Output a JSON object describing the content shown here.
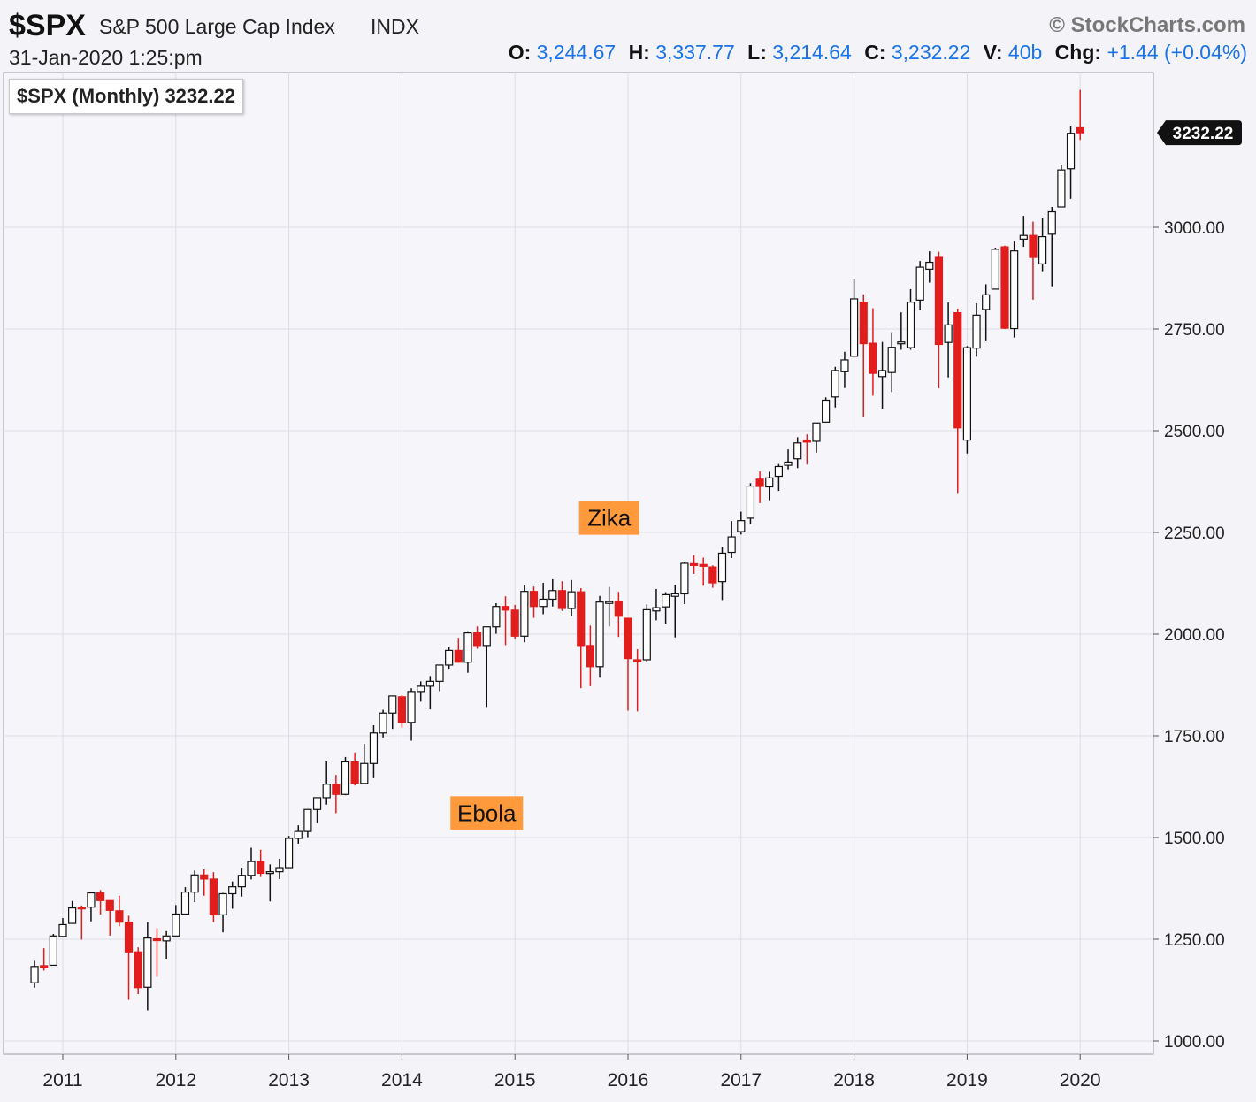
{
  "header": {
    "symbol": "$SPX",
    "name": "S&P 500 Large Cap Index",
    "exchange": "INDX",
    "copyright": "© StockCharts.com",
    "date": "31-Jan-2020 1:25:pm",
    "ohlc": {
      "o_label": "O:",
      "o": "3,244.67",
      "h_label": "H:",
      "h": "3,337.77",
      "l_label": "L:",
      "l": "3,214.64",
      "c_label": "C:",
      "c": "3,232.22",
      "v_label": "V:",
      "v": "40b",
      "chg_label": "Chg:",
      "chg": "+1.44 (+0.04%)"
    }
  },
  "chart_title": "$SPX (Monthly) 3232.22",
  "colors": {
    "up_fill": "#ffffff",
    "down_fill": "#e11d1d",
    "wick": "#111111",
    "grid": "#dcdce4",
    "plot_bg": "#f6f6fa",
    "annotation_bg": "#ff9a3c"
  },
  "chart_data": {
    "type": "candlestick",
    "interval": "monthly",
    "ylim": [
      975,
      3400
    ],
    "yticks": [
      "1000.00",
      "1250.00",
      "1500.00",
      "1750.00",
      "2000.00",
      "2250.00",
      "2500.00",
      "2750.00",
      "3000.00"
    ],
    "ytick_values": [
      1000,
      1250,
      1500,
      1750,
      2000,
      2250,
      2500,
      2750,
      3000
    ],
    "xticks": [
      "2011",
      "2012",
      "2013",
      "2014",
      "2015",
      "2016",
      "2017",
      "2018",
      "2019",
      "2020"
    ],
    "last_price_label": "3232.22",
    "annotations": [
      {
        "text": "Zika",
        "date": "2015-11"
      },
      {
        "text": "Ebola",
        "date": "2014-10"
      }
    ],
    "candles": [
      {
        "d": "2010-10",
        "o": 1143,
        "h": 1197,
        "l": 1131,
        "c": 1183
      },
      {
        "d": "2010-11",
        "o": 1185,
        "h": 1228,
        "l": 1173,
        "c": 1180
      },
      {
        "d": "2010-12",
        "o": 1186,
        "h": 1263,
        "l": 1186,
        "c": 1258
      },
      {
        "d": "2011-01",
        "o": 1257,
        "h": 1302,
        "l": 1257,
        "c": 1286
      },
      {
        "d": "2011-02",
        "o": 1289,
        "h": 1344,
        "l": 1289,
        "c": 1327
      },
      {
        "d": "2011-03",
        "o": 1329,
        "h": 1333,
        "l": 1249,
        "c": 1326
      },
      {
        "d": "2011-04",
        "o": 1329,
        "h": 1364,
        "l": 1294,
        "c": 1364
      },
      {
        "d": "2011-05",
        "o": 1365,
        "h": 1371,
        "l": 1311,
        "c": 1345
      },
      {
        "d": "2011-06",
        "o": 1345,
        "h": 1346,
        "l": 1259,
        "c": 1321
      },
      {
        "d": "2011-07",
        "o": 1320,
        "h": 1357,
        "l": 1282,
        "c": 1292
      },
      {
        "d": "2011-08",
        "o": 1292,
        "h": 1308,
        "l": 1101,
        "c": 1219
      },
      {
        "d": "2011-09",
        "o": 1219,
        "h": 1230,
        "l": 1115,
        "c": 1131
      },
      {
        "d": "2011-10",
        "o": 1132,
        "h": 1292,
        "l": 1075,
        "c": 1253
      },
      {
        "d": "2011-11",
        "o": 1251,
        "h": 1277,
        "l": 1158,
        "c": 1247
      },
      {
        "d": "2011-12",
        "o": 1246,
        "h": 1270,
        "l": 1202,
        "c": 1258
      },
      {
        "d": "2012-01",
        "o": 1258,
        "h": 1334,
        "l": 1258,
        "c": 1312
      },
      {
        "d": "2012-02",
        "o": 1312,
        "h": 1378,
        "l": 1312,
        "c": 1366
      },
      {
        "d": "2012-03",
        "o": 1366,
        "h": 1419,
        "l": 1341,
        "c": 1408
      },
      {
        "d": "2012-04",
        "o": 1408,
        "h": 1422,
        "l": 1357,
        "c": 1398
      },
      {
        "d": "2012-05",
        "o": 1398,
        "h": 1415,
        "l": 1292,
        "c": 1310
      },
      {
        "d": "2012-06",
        "o": 1310,
        "h": 1364,
        "l": 1267,
        "c": 1362
      },
      {
        "d": "2012-07",
        "o": 1362,
        "h": 1392,
        "l": 1325,
        "c": 1379
      },
      {
        "d": "2012-08",
        "o": 1379,
        "h": 1426,
        "l": 1355,
        "c": 1407
      },
      {
        "d": "2012-09",
        "o": 1407,
        "h": 1475,
        "l": 1397,
        "c": 1441
      },
      {
        "d": "2012-10",
        "o": 1441,
        "h": 1470,
        "l": 1403,
        "c": 1412
      },
      {
        "d": "2012-11",
        "o": 1412,
        "h": 1434,
        "l": 1343,
        "c": 1416
      },
      {
        "d": "2012-12",
        "o": 1416,
        "h": 1448,
        "l": 1398,
        "c": 1426
      },
      {
        "d": "2013-01",
        "o": 1426,
        "h": 1504,
        "l": 1426,
        "c": 1498
      },
      {
        "d": "2013-02",
        "o": 1498,
        "h": 1530,
        "l": 1485,
        "c": 1515
      },
      {
        "d": "2013-03",
        "o": 1515,
        "h": 1570,
        "l": 1501,
        "c": 1569
      },
      {
        "d": "2013-04",
        "o": 1569,
        "h": 1598,
        "l": 1536,
        "c": 1598
      },
      {
        "d": "2013-05",
        "o": 1598,
        "h": 1687,
        "l": 1581,
        "c": 1631
      },
      {
        "d": "2013-06",
        "o": 1631,
        "h": 1654,
        "l": 1560,
        "c": 1606
      },
      {
        "d": "2013-07",
        "o": 1606,
        "h": 1698,
        "l": 1604,
        "c": 1686
      },
      {
        "d": "2013-08",
        "o": 1686,
        "h": 1709,
        "l": 1628,
        "c": 1633
      },
      {
        "d": "2013-09",
        "o": 1633,
        "h": 1730,
        "l": 1633,
        "c": 1682
      },
      {
        "d": "2013-10",
        "o": 1682,
        "h": 1776,
        "l": 1646,
        "c": 1757
      },
      {
        "d": "2013-11",
        "o": 1757,
        "h": 1814,
        "l": 1746,
        "c": 1806
      },
      {
        "d": "2013-12",
        "o": 1806,
        "h": 1849,
        "l": 1767,
        "c": 1848
      },
      {
        "d": "2014-01",
        "o": 1846,
        "h": 1850,
        "l": 1770,
        "c": 1783
      },
      {
        "d": "2014-02",
        "o": 1783,
        "h": 1867,
        "l": 1738,
        "c": 1859
      },
      {
        "d": "2014-03",
        "o": 1859,
        "h": 1884,
        "l": 1834,
        "c": 1872
      },
      {
        "d": "2014-04",
        "o": 1872,
        "h": 1897,
        "l": 1815,
        "c": 1884
      },
      {
        "d": "2014-05",
        "o": 1884,
        "h": 1924,
        "l": 1860,
        "c": 1924
      },
      {
        "d": "2014-06",
        "o": 1924,
        "h": 1968,
        "l": 1915,
        "c": 1960
      },
      {
        "d": "2014-07",
        "o": 1960,
        "h": 1991,
        "l": 1930,
        "c": 1931
      },
      {
        "d": "2014-08",
        "o": 1931,
        "h": 2005,
        "l": 1905,
        "c": 2003
      },
      {
        "d": "2014-09",
        "o": 2003,
        "h": 2019,
        "l": 1964,
        "c": 1972
      },
      {
        "d": "2014-10",
        "o": 1972,
        "h": 2018,
        "l": 1821,
        "c": 2018
      },
      {
        "d": "2014-11",
        "o": 2018,
        "h": 2076,
        "l": 2001,
        "c": 2068
      },
      {
        "d": "2014-12",
        "o": 2068,
        "h": 2093,
        "l": 1973,
        "c": 2059
      },
      {
        "d": "2015-01",
        "o": 2059,
        "h": 2072,
        "l": 1988,
        "c": 1995
      },
      {
        "d": "2015-02",
        "o": 1995,
        "h": 2120,
        "l": 1980,
        "c": 2105
      },
      {
        "d": "2015-03",
        "o": 2105,
        "h": 2117,
        "l": 2040,
        "c": 2068
      },
      {
        "d": "2015-04",
        "o": 2068,
        "h": 2126,
        "l": 2049,
        "c": 2086
      },
      {
        "d": "2015-05",
        "o": 2086,
        "h": 2135,
        "l": 2068,
        "c": 2107
      },
      {
        "d": "2015-06",
        "o": 2107,
        "h": 2130,
        "l": 2057,
        "c": 2063
      },
      {
        "d": "2015-07",
        "o": 2063,
        "h": 2133,
        "l": 2045,
        "c": 2104
      },
      {
        "d": "2015-08",
        "o": 2104,
        "h": 2113,
        "l": 1867,
        "c": 1972
      },
      {
        "d": "2015-09",
        "o": 1972,
        "h": 2021,
        "l": 1872,
        "c": 1920
      },
      {
        "d": "2015-10",
        "o": 1920,
        "h": 2094,
        "l": 1893,
        "c": 2079
      },
      {
        "d": "2015-11",
        "o": 2079,
        "h": 2116,
        "l": 2019,
        "c": 2080
      },
      {
        "d": "2015-12",
        "o": 2080,
        "h": 2104,
        "l": 1993,
        "c": 2044
      },
      {
        "d": "2016-01",
        "o": 2039,
        "h": 2039,
        "l": 1812,
        "c": 1940
      },
      {
        "d": "2016-02",
        "o": 1937,
        "h": 1963,
        "l": 1810,
        "c": 1932
      },
      {
        "d": "2016-03",
        "o": 1937,
        "h": 2073,
        "l": 1931,
        "c": 2060
      },
      {
        "d": "2016-04",
        "o": 2057,
        "h": 2111,
        "l": 2034,
        "c": 2065
      },
      {
        "d": "2016-05",
        "o": 2067,
        "h": 2103,
        "l": 2026,
        "c": 2097
      },
      {
        "d": "2016-06",
        "o": 2093,
        "h": 2121,
        "l": 1992,
        "c": 2099
      },
      {
        "d": "2016-07",
        "o": 2099,
        "h": 2178,
        "l": 2074,
        "c": 2174
      },
      {
        "d": "2016-08",
        "o": 2173,
        "h": 2194,
        "l": 2148,
        "c": 2171
      },
      {
        "d": "2016-09",
        "o": 2171,
        "h": 2188,
        "l": 2119,
        "c": 2168
      },
      {
        "d": "2016-10",
        "o": 2165,
        "h": 2169,
        "l": 2114,
        "c": 2126
      },
      {
        "d": "2016-11",
        "o": 2129,
        "h": 2214,
        "l": 2084,
        "c": 2199
      },
      {
        "d": "2016-12",
        "o": 2201,
        "h": 2278,
        "l": 2187,
        "c": 2239
      },
      {
        "d": "2017-01",
        "o": 2252,
        "h": 2301,
        "l": 2245,
        "c": 2279
      },
      {
        "d": "2017-02",
        "o": 2285,
        "h": 2371,
        "l": 2271,
        "c": 2364
      },
      {
        "d": "2017-03",
        "o": 2381,
        "h": 2400,
        "l": 2322,
        "c": 2363
      },
      {
        "d": "2017-04",
        "o": 2362,
        "h": 2399,
        "l": 2329,
        "c": 2384
      },
      {
        "d": "2017-05",
        "o": 2388,
        "h": 2418,
        "l": 2352,
        "c": 2412
      },
      {
        "d": "2017-06",
        "o": 2415,
        "h": 2454,
        "l": 2405,
        "c": 2423
      },
      {
        "d": "2017-07",
        "o": 2431,
        "h": 2484,
        "l": 2408,
        "c": 2470
      },
      {
        "d": "2017-08",
        "o": 2477,
        "h": 2491,
        "l": 2417,
        "c": 2472
      },
      {
        "d": "2017-09",
        "o": 2474,
        "h": 2519,
        "l": 2446,
        "c": 2519
      },
      {
        "d": "2017-10",
        "o": 2521,
        "h": 2582,
        "l": 2520,
        "c": 2575
      },
      {
        "d": "2017-11",
        "o": 2583,
        "h": 2657,
        "l": 2557,
        "c": 2648
      },
      {
        "d": "2017-12",
        "o": 2645,
        "h": 2694,
        "l": 2605,
        "c": 2674
      },
      {
        "d": "2018-01",
        "o": 2683,
        "h": 2873,
        "l": 2683,
        "c": 2824
      },
      {
        "d": "2018-02",
        "o": 2816,
        "h": 2835,
        "l": 2533,
        "c": 2714
      },
      {
        "d": "2018-03",
        "o": 2715,
        "h": 2801,
        "l": 2586,
        "c": 2641
      },
      {
        "d": "2018-04",
        "o": 2633,
        "h": 2718,
        "l": 2554,
        "c": 2648
      },
      {
        "d": "2018-05",
        "o": 2643,
        "h": 2742,
        "l": 2595,
        "c": 2705
      },
      {
        "d": "2018-06",
        "o": 2718,
        "h": 2791,
        "l": 2699,
        "c": 2718
      },
      {
        "d": "2018-07",
        "o": 2704,
        "h": 2848,
        "l": 2699,
        "c": 2816
      },
      {
        "d": "2018-08",
        "o": 2821,
        "h": 2917,
        "l": 2796,
        "c": 2902
      },
      {
        "d": "2018-09",
        "o": 2897,
        "h": 2941,
        "l": 2864,
        "c": 2914
      },
      {
        "d": "2018-10",
        "o": 2926,
        "h": 2940,
        "l": 2604,
        "c": 2712
      },
      {
        "d": "2018-11",
        "o": 2717,
        "h": 2815,
        "l": 2631,
        "c": 2760
      },
      {
        "d": "2018-12",
        "o": 2790,
        "h": 2800,
        "l": 2347,
        "c": 2507
      },
      {
        "d": "2019-01",
        "o": 2477,
        "h": 2708,
        "l": 2444,
        "c": 2704
      },
      {
        "d": "2019-02",
        "o": 2703,
        "h": 2813,
        "l": 2682,
        "c": 2784
      },
      {
        "d": "2019-03",
        "o": 2798,
        "h": 2860,
        "l": 2722,
        "c": 2834
      },
      {
        "d": "2019-04",
        "o": 2848,
        "h": 2950,
        "l": 2848,
        "c": 2946
      },
      {
        "d": "2019-05",
        "o": 2952,
        "h": 2955,
        "l": 2750,
        "c": 2752
      },
      {
        "d": "2019-06",
        "o": 2751,
        "h": 2965,
        "l": 2729,
        "c": 2942
      },
      {
        "d": "2019-07",
        "o": 2971,
        "h": 3028,
        "l": 2952,
        "c": 2980
      },
      {
        "d": "2019-08",
        "o": 2980,
        "h": 3014,
        "l": 2822,
        "c": 2926
      },
      {
        "d": "2019-09",
        "o": 2910,
        "h": 3022,
        "l": 2892,
        "c": 2977
      },
      {
        "d": "2019-10",
        "o": 2983,
        "h": 3050,
        "l": 2855,
        "c": 3038
      },
      {
        "d": "2019-11",
        "o": 3050,
        "h": 3154,
        "l": 3050,
        "c": 3141
      },
      {
        "d": "2019-12",
        "o": 3144,
        "h": 3248,
        "l": 3070,
        "c": 3231
      },
      {
        "d": "2020-01",
        "o": 3244.67,
        "h": 3337.77,
        "l": 3214.64,
        "c": 3232.22
      }
    ]
  }
}
